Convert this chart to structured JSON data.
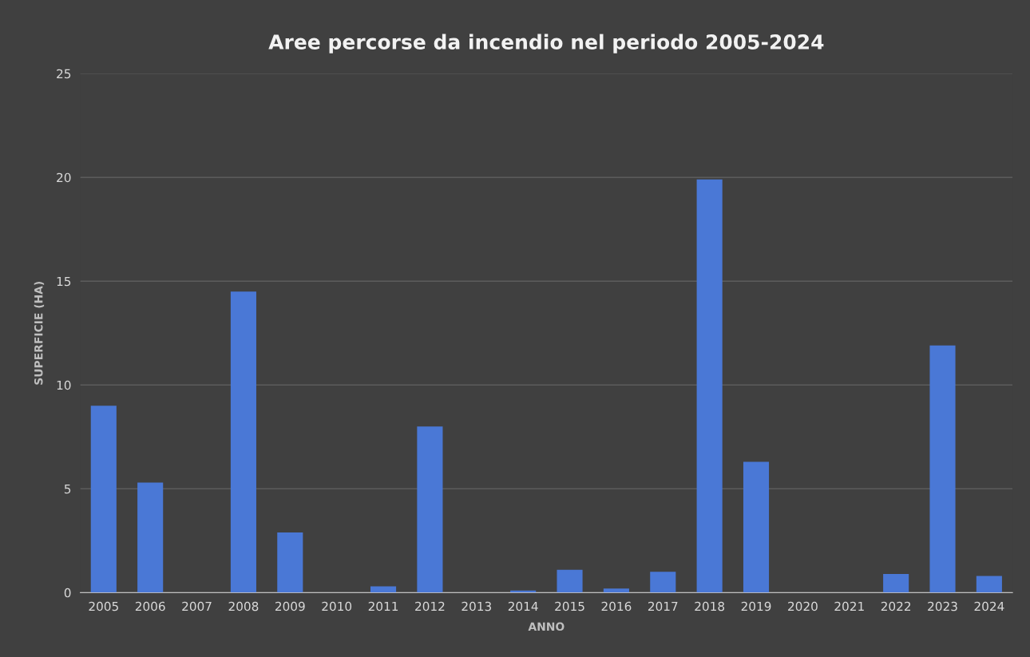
{
  "chart_data": {
    "type": "bar",
    "title": "Aree percorse da incendio nel periodo 2005-2024",
    "xlabel": "ANNO",
    "ylabel": "SUPERFICIE (HA)",
    "categories": [
      "2005",
      "2006",
      "2007",
      "2008",
      "2009",
      "2010",
      "2011",
      "2012",
      "2013",
      "2014",
      "2015",
      "2016",
      "2017",
      "2018",
      "2019",
      "2020",
      "2021",
      "2022",
      "2023",
      "2024"
    ],
    "values": [
      9.0,
      5.3,
      0,
      14.5,
      2.9,
      0,
      0.3,
      8.0,
      0,
      0.1,
      1.1,
      0.2,
      1.0,
      19.9,
      6.3,
      0,
      0,
      0.9,
      11.9,
      0.8
    ],
    "color": "#4a78d6",
    "ylim": [
      0,
      25
    ],
    "yticks": [
      0,
      5,
      10,
      15,
      20,
      25
    ],
    "grid": "y",
    "legend": false
  }
}
